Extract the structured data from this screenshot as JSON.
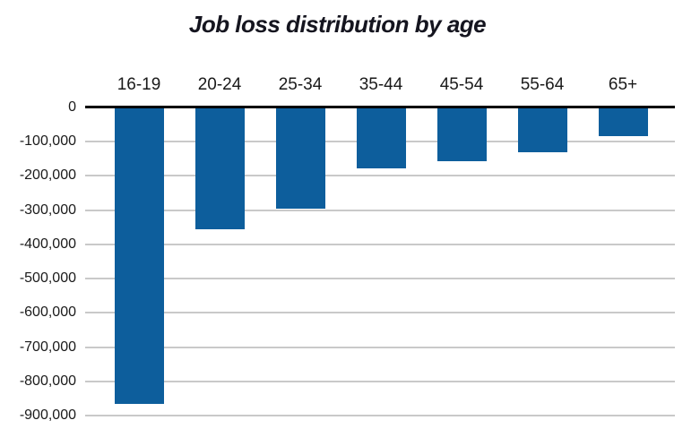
{
  "chart_data": {
    "type": "bar",
    "title": "Job loss distribution by age",
    "categories": [
      "16-19",
      "20-24",
      "25-34",
      "35-44",
      "45-54",
      "55-64",
      "65+"
    ],
    "values": [
      -865000,
      -355000,
      -295000,
      -178000,
      -156000,
      -132000,
      -83000
    ],
    "xlabel": "",
    "ylabel": "",
    "ylim": [
      -900000,
      0
    ],
    "ytick_values": [
      0,
      -100000,
      -200000,
      -300000,
      -400000,
      -500000,
      -600000,
      -700000,
      -800000,
      -900000
    ],
    "ytick_labels": [
      "0",
      "-100,000",
      "-200,000",
      "-300,000",
      "-400,000",
      "-500,000",
      "-600,000",
      "-700,000",
      "-800,000",
      "-900,000"
    ],
    "grid": "horizontal-gridlines-on",
    "legend_position": "none",
    "colors": {
      "bar": "#0d5e9c",
      "gridline": "#c9c9c9",
      "zero_axis_line": "#000000",
      "text": "#1a1a1a",
      "title_text": "#15151f",
      "background": "#ffffff"
    }
  }
}
